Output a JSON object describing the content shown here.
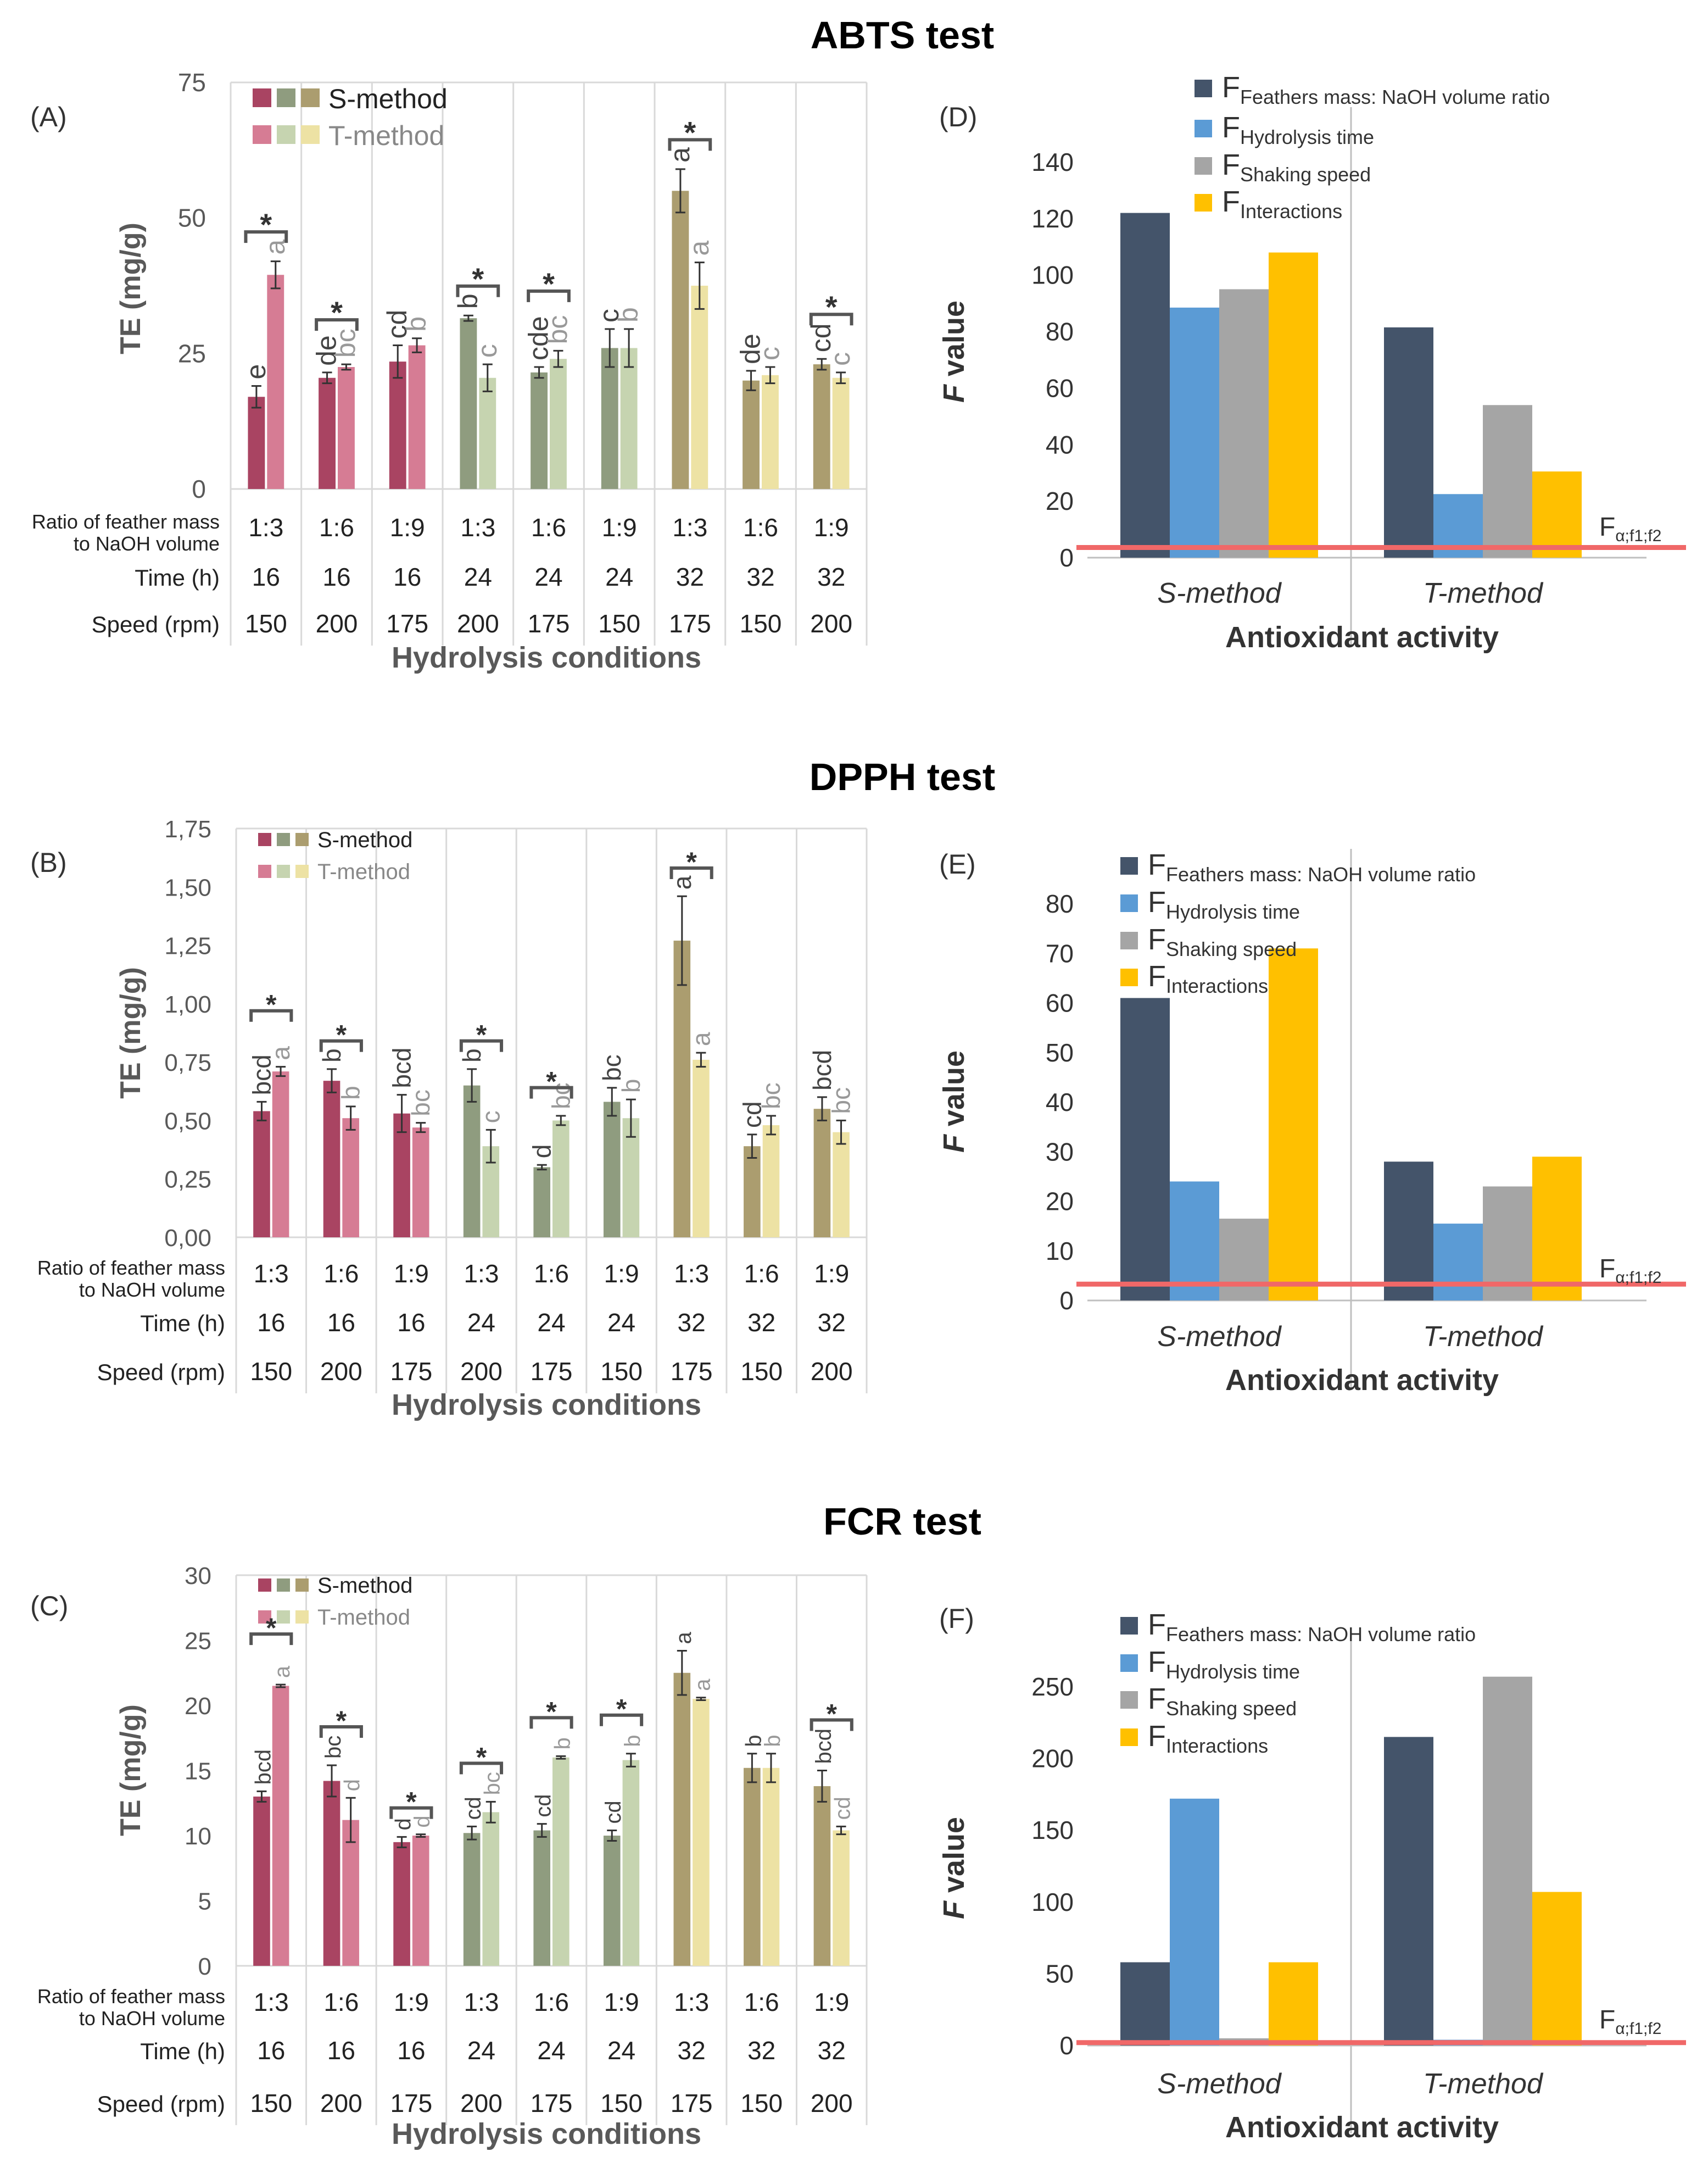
{
  "sections": [
    {
      "title": "ABTS test"
    },
    {
      "title": "DPPH test"
    },
    {
      "title": "FCR test"
    }
  ],
  "colors": {
    "s_method": [
      "#a94462",
      "#8f9c7f",
      "#ab9d6f"
    ],
    "t_method": [
      "#d67c94",
      "#c6d4b0",
      "#ede2a4"
    ],
    "f_bars": [
      "#44546a",
      "#5b9bd5",
      "#a5a5a5",
      "#ffc000"
    ],
    "critical_line": "#f06868",
    "grid": "#d9d9d9",
    "bracket": "#555555",
    "axis_text": "#595959"
  },
  "chart_data": [
    {
      "panel": "(A)",
      "type": "bar",
      "title": "",
      "ylabel": "TE (mg/g)",
      "xlabel": "Hydrolysis conditions",
      "ylim": [
        0,
        75
      ],
      "yticks": [
        "0",
        "25",
        "50",
        "75"
      ],
      "legend": [
        "S-method",
        "T-method"
      ],
      "table_labels": [
        "Ratio of feather mass\nto NaOH volume",
        "Time (h)",
        "Speed (rpm)"
      ],
      "conditions": {
        "ratio": [
          "1:3",
          "1:6",
          "1:9",
          "1:3",
          "1:6",
          "1:9",
          "1:3",
          "1:6",
          "1:9"
        ],
        "time": [
          "16",
          "16",
          "16",
          "24",
          "24",
          "24",
          "32",
          "32",
          "32"
        ],
        "speed": [
          "150",
          "200",
          "175",
          "200",
          "175",
          "150",
          "175",
          "150",
          "200"
        ]
      },
      "series": [
        {
          "name": "S-method",
          "values": [
            17,
            20.5,
            23.5,
            31.5,
            21.5,
            26,
            55,
            20,
            23
          ],
          "errors": [
            2,
            1,
            3,
            0.5,
            1,
            3.5,
            4,
            1.8,
            1
          ],
          "letters": [
            "e",
            "de",
            "cd",
            "b",
            "cde",
            "c",
            "a",
            "de",
            "cd"
          ]
        },
        {
          "name": "T-method",
          "values": [
            39.5,
            22.5,
            26.5,
            20.5,
            24,
            26,
            37.5,
            21,
            20.5
          ],
          "errors": [
            2.5,
            0.5,
            1.3,
            2.5,
            1.5,
            3.5,
            4.3,
            1.5,
            1
          ],
          "letters": [
            "a",
            "bc",
            "b",
            "c",
            "bc",
            "b",
            "a",
            "c",
            "c"
          ]
        }
      ],
      "significant": [
        true,
        true,
        false,
        true,
        true,
        false,
        true,
        false,
        true
      ],
      "significance_label": "*"
    },
    {
      "panel": "(B)",
      "type": "bar",
      "title": "",
      "ylabel": "TE (mg/g)",
      "xlabel": "Hydrolysis conditions",
      "ylim": [
        0,
        1.75
      ],
      "yticks": [
        "0,00",
        "0,25",
        "0,50",
        "0,75",
        "1,00",
        "1,25",
        "1,50",
        "1,75"
      ],
      "legend": [
        "S-method",
        "T-method"
      ],
      "table_labels": [
        "Ratio of feather mass\nto NaOH volume",
        "Time (h)",
        "Speed (rpm)"
      ],
      "conditions": {
        "ratio": [
          "1:3",
          "1:6",
          "1:9",
          "1:3",
          "1:6",
          "1:9",
          "1:3",
          "1:6",
          "1:9"
        ],
        "time": [
          "16",
          "16",
          "16",
          "24",
          "24",
          "24",
          "32",
          "32",
          "32"
        ],
        "speed": [
          "150",
          "200",
          "175",
          "200",
          "175",
          "150",
          "175",
          "150",
          "200"
        ]
      },
      "series": [
        {
          "name": "S-method",
          "values": [
            0.54,
            0.67,
            0.53,
            0.65,
            0.3,
            0.58,
            1.27,
            0.39,
            0.55
          ],
          "errors": [
            0.04,
            0.05,
            0.08,
            0.07,
            0.01,
            0.06,
            0.19,
            0.05,
            0.05
          ],
          "letters": [
            "bcd",
            "b",
            "bcd",
            "b",
            "d",
            "bc",
            "a",
            "cd",
            "bcd"
          ]
        },
        {
          "name": "T-method",
          "values": [
            0.71,
            0.51,
            0.47,
            0.39,
            0.5,
            0.51,
            0.76,
            0.48,
            0.45
          ],
          "errors": [
            0.02,
            0.05,
            0.02,
            0.07,
            0.02,
            0.08,
            0.03,
            0.04,
            0.05
          ],
          "letters": [
            "a",
            "b",
            "bc",
            "c",
            "bc",
            "b",
            "a",
            "bc",
            "bc"
          ]
        }
      ],
      "significant": [
        true,
        true,
        false,
        true,
        true,
        false,
        true,
        false,
        false
      ],
      "significance_label": "*"
    },
    {
      "panel": "(C)",
      "type": "bar",
      "title": "",
      "ylabel": "TE (mg/g)",
      "xlabel": "Hydrolysis conditions",
      "ylim": [
        0,
        30
      ],
      "yticks": [
        "0",
        "5",
        "10",
        "15",
        "20",
        "25",
        "30"
      ],
      "legend": [
        "S-method",
        "T-method"
      ],
      "table_labels": [
        "Ratio of feather mass\nto NaOH volume",
        "Time (h)",
        "Speed (rpm)"
      ],
      "conditions": {
        "ratio": [
          "1:3",
          "1:6",
          "1:9",
          "1:3",
          "1:6",
          "1:9",
          "1:3",
          "1:6",
          "1:9"
        ],
        "time": [
          "16",
          "16",
          "16",
          "24",
          "24",
          "24",
          "32",
          "32",
          "32"
        ],
        "speed": [
          "150",
          "200",
          "175",
          "200",
          "175",
          "150",
          "175",
          "150",
          "200"
        ]
      },
      "series": [
        {
          "name": "S-method",
          "values": [
            13,
            14.2,
            9.5,
            10.2,
            10.4,
            10,
            22.5,
            15.2,
            13.8
          ],
          "errors": [
            0.4,
            1.2,
            0.4,
            0.5,
            0.5,
            0.4,
            1.7,
            1.1,
            1.2
          ],
          "letters": [
            "bcd",
            "bc",
            "d",
            "cd",
            "cd",
            "cd",
            "a",
            "b",
            "bcd"
          ]
        },
        {
          "name": "T-method",
          "values": [
            21.5,
            11.2,
            10,
            11.8,
            16,
            15.8,
            20.5,
            15.2,
            10.4
          ],
          "errors": [
            0.1,
            1.7,
            0.1,
            0.8,
            0.1,
            0.5,
            0.1,
            1.1,
            0.3
          ],
          "letters": [
            "a",
            "d",
            "d",
            "bc",
            "b",
            "b",
            "a",
            "b",
            "cd"
          ]
        }
      ],
      "significant": [
        true,
        true,
        true,
        true,
        true,
        true,
        false,
        false,
        true
      ],
      "significance_label": "*"
    },
    {
      "panel": "(D)",
      "type": "bar",
      "title": "",
      "ylabel": "F value",
      "xlabel": "Antioxidant activity",
      "ylim": [
        0,
        140
      ],
      "yticks": [
        "0",
        "20",
        "40",
        "60",
        "80",
        "100",
        "120",
        "140"
      ],
      "categories": [
        "S-method",
        "T-method"
      ],
      "series": [
        {
          "name": "Feathers mass: NaOH volume ratio",
          "values": [
            122,
            81.5
          ]
        },
        {
          "name": "Hydrolysis time",
          "values": [
            88.5,
            22.5
          ]
        },
        {
          "name": "Shaking speed",
          "values": [
            95,
            54
          ]
        },
        {
          "name": "Interactions",
          "values": [
            108,
            30.5
          ]
        }
      ],
      "critical_value": 3.6,
      "critical_label": "α;f1;f2"
    },
    {
      "panel": "(E)",
      "type": "bar",
      "title": "",
      "ylabel": "F value",
      "xlabel": "Antioxidant activity",
      "ylim": [
        0,
        80
      ],
      "yticks": [
        "0",
        "10",
        "20",
        "30",
        "40",
        "50",
        "60",
        "70",
        "80"
      ],
      "categories": [
        "S-method",
        "T-method"
      ],
      "series": [
        {
          "name": "Feathers mass: NaOH volume ratio",
          "values": [
            61,
            28
          ]
        },
        {
          "name": "Hydrolysis time",
          "values": [
            24,
            15.5
          ]
        },
        {
          "name": "Shaking speed",
          "values": [
            16.5,
            23
          ]
        },
        {
          "name": "Interactions",
          "values": [
            71,
            29
          ]
        }
      ],
      "critical_value": 3.3,
      "critical_label": "α;f1;f2"
    },
    {
      "panel": "(F)",
      "type": "bar",
      "title": "",
      "ylabel": "F value",
      "xlabel": "Antioxidant activity",
      "ylim": [
        0,
        250
      ],
      "yticks": [
        "0",
        "50",
        "100",
        "150",
        "200",
        "250"
      ],
      "categories": [
        "S-method",
        "T-method"
      ],
      "series": [
        {
          "name": "Feathers mass: NaOH volume ratio",
          "values": [
            58,
            215
          ]
        },
        {
          "name": "Hydrolysis time",
          "values": [
            172,
            4
          ]
        },
        {
          "name": "Shaking speed",
          "values": [
            5,
            257
          ]
        },
        {
          "name": "Interactions",
          "values": [
            58,
            107
          ]
        }
      ],
      "critical_value": 2,
      "critical_label": "α;f1;f2"
    }
  ]
}
